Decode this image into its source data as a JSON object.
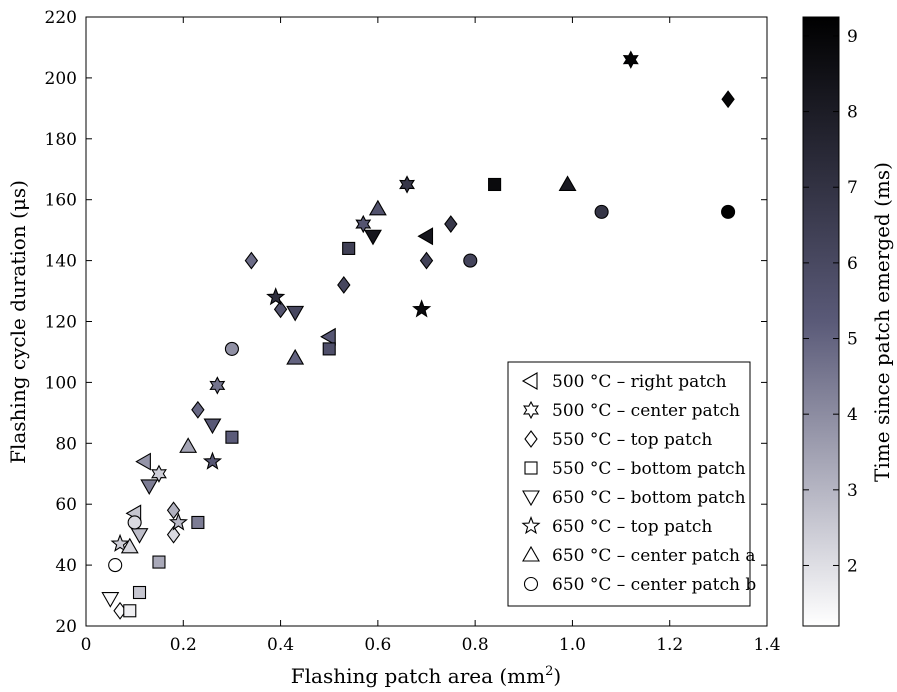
{
  "chart_data": {
    "type": "scatter",
    "xlabel": "Flashing patch area (mm",
    "xlabel_sup": "2",
    "xlabel_tail": ")",
    "ylabel": "Flashing cycle duration (μs)",
    "xlim": [
      0,
      1.4
    ],
    "ylim": [
      20,
      220
    ],
    "x_ticks": [
      "0",
      "0.2",
      "0.4",
      "0.6",
      "0.8",
      "1.0",
      "1.2",
      "1.4"
    ],
    "y_ticks": [
      "20",
      "40",
      "60",
      "80",
      "100",
      "120",
      "140",
      "160",
      "180",
      "200",
      "220"
    ],
    "grid": false,
    "legend_position": "bottom-right",
    "colorbar": {
      "label": "Time since patch emerged (ms)",
      "range": [
        1.2,
        9.25
      ],
      "ticks": [
        "2",
        "3",
        "4",
        "5",
        "6",
        "7",
        "8",
        "9"
      ],
      "color_low": "#ffffff",
      "color_mid": "#5a5a78",
      "color_high": "#000000"
    },
    "series": [
      {
        "name": "500 °C – right patch",
        "marker": "triangle-left",
        "points": [
          {
            "x": 0.12,
            "y": 74,
            "c": 3.8
          },
          {
            "x": 0.1,
            "y": 57,
            "c": 2.6
          },
          {
            "x": 0.5,
            "y": 115,
            "c": 5.4
          },
          {
            "x": 0.7,
            "y": 148,
            "c": 8.3
          }
        ]
      },
      {
        "name": "500 °C – center patch",
        "marker": "star6",
        "points": [
          {
            "x": 0.15,
            "y": 70,
            "c": 2.4
          },
          {
            "x": 0.27,
            "y": 99,
            "c": 4.6
          },
          {
            "x": 0.57,
            "y": 152,
            "c": 5.5
          },
          {
            "x": 0.66,
            "y": 165,
            "c": 6.8
          },
          {
            "x": 1.12,
            "y": 206,
            "c": 9.1
          }
        ]
      },
      {
        "name": "550 °C – top patch",
        "marker": "diamond",
        "points": [
          {
            "x": 0.07,
            "y": 25,
            "c": 1.3
          },
          {
            "x": 0.18,
            "y": 50,
            "c": 2.1
          },
          {
            "x": 0.18,
            "y": 58,
            "c": 3.1
          },
          {
            "x": 0.23,
            "y": 91,
            "c": 4.9
          },
          {
            "x": 0.34,
            "y": 140,
            "c": 4.8
          },
          {
            "x": 0.4,
            "y": 124,
            "c": 5.6
          },
          {
            "x": 0.53,
            "y": 132,
            "c": 6.1
          },
          {
            "x": 0.7,
            "y": 140,
            "c": 6.3
          },
          {
            "x": 0.75,
            "y": 152,
            "c": 6.8
          },
          {
            "x": 1.32,
            "y": 193,
            "c": 9.0
          }
        ]
      },
      {
        "name": "550 °C – bottom patch",
        "marker": "square",
        "points": [
          {
            "x": 0.09,
            "y": 25,
            "c": 1.6
          },
          {
            "x": 0.11,
            "y": 31,
            "c": 2.6
          },
          {
            "x": 0.15,
            "y": 41,
            "c": 3.3
          },
          {
            "x": 0.23,
            "y": 54,
            "c": 4.4
          },
          {
            "x": 0.3,
            "y": 82,
            "c": 5.2
          },
          {
            "x": 0.5,
            "y": 111,
            "c": 5.7
          },
          {
            "x": 0.54,
            "y": 144,
            "c": 6.4
          },
          {
            "x": 0.84,
            "y": 165,
            "c": 8.8
          }
        ]
      },
      {
        "name": "650 °C – bottom patch",
        "marker": "triangle-down",
        "points": [
          {
            "x": 0.05,
            "y": 29,
            "c": 1.3
          },
          {
            "x": 0.11,
            "y": 50,
            "c": 2.8
          },
          {
            "x": 0.13,
            "y": 66,
            "c": 4.4
          },
          {
            "x": 0.26,
            "y": 86,
            "c": 5.3
          },
          {
            "x": 0.43,
            "y": 123,
            "c": 6.1
          },
          {
            "x": 0.59,
            "y": 148,
            "c": 8.3
          }
        ]
      },
      {
        "name": "650 °C – top patch",
        "marker": "star5",
        "points": [
          {
            "x": 0.07,
            "y": 47,
            "c": 2.4
          },
          {
            "x": 0.19,
            "y": 54,
            "c": 2.9
          },
          {
            "x": 0.26,
            "y": 74,
            "c": 5.4
          },
          {
            "x": 0.39,
            "y": 128,
            "c": 7.2
          },
          {
            "x": 0.69,
            "y": 124,
            "c": 8.8
          }
        ]
      },
      {
        "name": "650 °C – center patch a",
        "marker": "triangle-up",
        "points": [
          {
            "x": 0.09,
            "y": 46,
            "c": 2.2
          },
          {
            "x": 0.21,
            "y": 79,
            "c": 3.4
          },
          {
            "x": 0.43,
            "y": 108,
            "c": 5.0
          },
          {
            "x": 0.6,
            "y": 157,
            "c": 5.6
          },
          {
            "x": 0.99,
            "y": 165,
            "c": 8.1
          }
        ]
      },
      {
        "name": "650 °C – center patch b",
        "marker": "circle",
        "points": [
          {
            "x": 0.06,
            "y": 40,
            "c": 1.2
          },
          {
            "x": 0.1,
            "y": 54,
            "c": 2.1
          },
          {
            "x": 0.3,
            "y": 111,
            "c": 3.9
          },
          {
            "x": 0.79,
            "y": 140,
            "c": 6.2
          },
          {
            "x": 1.06,
            "y": 156,
            "c": 6.9
          },
          {
            "x": 1.32,
            "y": 156,
            "c": 9.2
          }
        ]
      }
    ]
  }
}
